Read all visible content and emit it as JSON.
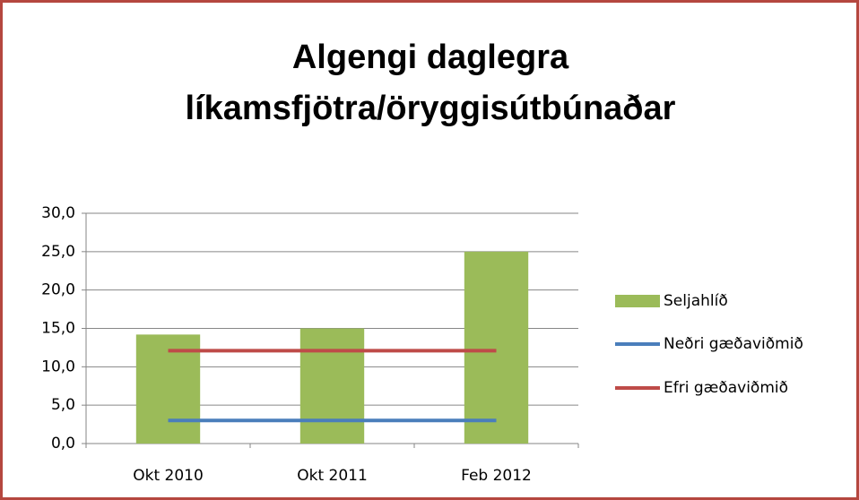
{
  "chart_data": {
    "type": "bar",
    "title": [
      "Algengi daglegra",
      "líkamsfjötra/öryggisútbúnaðar"
    ],
    "categories": [
      "Okt 2010",
      "Okt 2011",
      "Feb 2012"
    ],
    "series": [
      {
        "name": "Seljahlíð",
        "type": "bar",
        "color": "#9bbb59",
        "values": [
          14.2,
          15.0,
          25.0
        ]
      },
      {
        "name": "Neðri gæðaviðmið",
        "type": "line",
        "color": "#4a7ebb",
        "values": [
          3.0,
          3.0,
          3.0
        ]
      },
      {
        "name": "Efri gæðaviðmið",
        "type": "line",
        "color": "#be4b48",
        "values": [
          12.1,
          12.1,
          12.1
        ]
      }
    ],
    "ylim": [
      0,
      30
    ],
    "yticks": [
      {
        "value": 0,
        "label": "0,0"
      },
      {
        "value": 5,
        "label": "5,0"
      },
      {
        "value": 10,
        "label": "10,0"
      },
      {
        "value": 15,
        "label": "15,0"
      },
      {
        "value": 20,
        "label": "20,0"
      },
      {
        "value": 25,
        "label": "25,0"
      },
      {
        "value": 30,
        "label": "30,0"
      }
    ],
    "grid": true,
    "legend": "right"
  }
}
